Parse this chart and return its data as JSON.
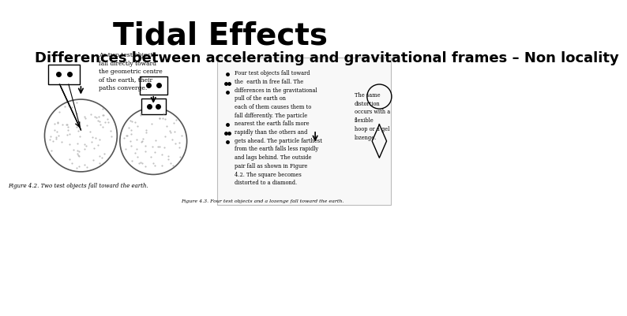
{
  "title": "Tidal Effects",
  "subtitle": "Differences between accelerating and gravitational frames – Non locality",
  "title_fontsize": 28,
  "subtitle_fontsize": 13,
  "bg_color": "#ffffff",
  "text_color": "#000000",
  "fig4_2_caption": "Figure 4.2. Two test objects fall toward the earth.",
  "fig4_3_caption": "Figure 4.3. Four test objects and a lozenge fall toward the earth.",
  "fig4_2_text": "As two test objects\nfall directly toward\nthe geometric centre\nof the earth, their\npaths converge.",
  "fig4_3_text_main": "Four test objects fall toward\nthe  earth in free fall. The\ndifferences in the gravitational\npull of the earth on\neach of them causes them to\nfall differently. The particle\nnearest the earth falls more\nrapidly than the others and\ngets ahead. The particle farthest\nfrom the earth falls less rapidly\nand lags behind. The outside\npair fall as shown in Figure\n4.2. The square becomes\ndistorted to a diamond.",
  "fig4_3_text_right": "The same\ndistortion\noccurs with a\nflexible\nhoop or a gel\nlozenge."
}
